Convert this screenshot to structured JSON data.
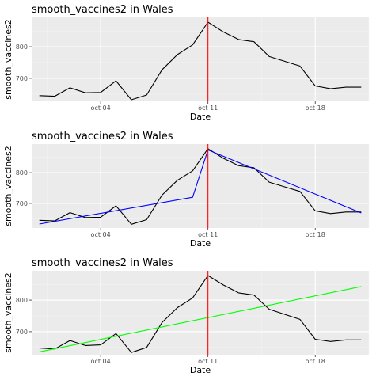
{
  "chart_data": [
    {
      "type": "line",
      "title": "smooth_vaccines2 in Wales",
      "xlabel": "Date",
      "ylabel": "smooth_vaccines2",
      "x": [
        "2021-09-30",
        "2021-10-01",
        "2021-10-02",
        "2021-10-03",
        "2021-10-04",
        "2021-10-05",
        "2021-10-06",
        "2021-10-07",
        "2021-10-08",
        "2021-10-09",
        "2021-10-10",
        "2021-10-11",
        "2021-10-12",
        "2021-10-13",
        "2021-10-14",
        "2021-10-15",
        "2021-10-16",
        "2021-10-17",
        "2021-10-18",
        "2021-10-19",
        "2021-10-20",
        "2021-10-21"
      ],
      "xlim": [
        "2021-09-29T12:00",
        "2021-10-21T12:00"
      ],
      "xticks": [
        {
          "date": "2021-10-04",
          "label": "oct 04"
        },
        {
          "date": "2021-10-11",
          "label": "oct 11"
        },
        {
          "date": "2021-10-18",
          "label": "oct 18"
        }
      ],
      "ylim": [
        627,
        893
      ],
      "yticks": [
        700,
        800
      ],
      "grid": true,
      "series": [
        {
          "color": "#000000",
          "values": [
            645,
            643,
            670,
            654,
            655,
            692,
            632,
            647,
            727,
            775,
            806,
            878,
            847,
            823,
            816,
            769,
            754,
            739,
            676,
            667,
            672,
            672
          ]
        }
      ],
      "vline": {
        "date": "2021-10-11",
        "color": "#ff0000"
      }
    },
    {
      "type": "line",
      "title": "smooth_vaccines2 in Wales",
      "xlabel": "Date",
      "ylabel": "smooth_vaccines2",
      "x": [
        "2021-09-30",
        "2021-10-01",
        "2021-10-02",
        "2021-10-03",
        "2021-10-04",
        "2021-10-05",
        "2021-10-06",
        "2021-10-07",
        "2021-10-08",
        "2021-10-09",
        "2021-10-10",
        "2021-10-11",
        "2021-10-12",
        "2021-10-13",
        "2021-10-14",
        "2021-10-15",
        "2021-10-16",
        "2021-10-17",
        "2021-10-18",
        "2021-10-19",
        "2021-10-20",
        "2021-10-21"
      ],
      "xlim": [
        "2021-09-29T12:00",
        "2021-10-21T12:00"
      ],
      "xticks": [
        {
          "date": "2021-10-04",
          "label": "oct 04"
        },
        {
          "date": "2021-10-11",
          "label": "oct 11"
        },
        {
          "date": "2021-10-18",
          "label": "oct 18"
        }
      ],
      "ylim": [
        620,
        893
      ],
      "yticks": [
        700,
        800
      ],
      "grid": true,
      "series": [
        {
          "color": "#000000",
          "values": [
            645,
            643,
            670,
            654,
            655,
            692,
            632,
            647,
            727,
            775,
            806,
            878,
            847,
            823,
            816,
            769,
            754,
            739,
            676,
            667,
            672,
            672
          ]
        },
        {
          "color": "#0000ff",
          "points": [
            {
              "x": "2021-09-30",
              "y": 633
            },
            {
              "x": "2021-10-10",
              "y": 720
            },
            {
              "x": "2021-10-11",
              "y": 874
            },
            {
              "x": "2021-10-21",
              "y": 669
            }
          ]
        }
      ],
      "vline": {
        "date": "2021-10-11",
        "color": "#ff0000"
      }
    },
    {
      "type": "line",
      "title": "smooth_vaccines2 in Wales",
      "xlabel": "Date",
      "ylabel": "smooth_vaccines2",
      "x": [
        "2021-09-30",
        "2021-10-01",
        "2021-10-02",
        "2021-10-03",
        "2021-10-04",
        "2021-10-05",
        "2021-10-06",
        "2021-10-07",
        "2021-10-08",
        "2021-10-09",
        "2021-10-10",
        "2021-10-11",
        "2021-10-12",
        "2021-10-13",
        "2021-10-14",
        "2021-10-15",
        "2021-10-16",
        "2021-10-17",
        "2021-10-18",
        "2021-10-19",
        "2021-10-20",
        "2021-10-21"
      ],
      "xlim": [
        "2021-09-29T12:00",
        "2021-10-21T12:00"
      ],
      "xticks": [
        {
          "date": "2021-10-04",
          "label": "oct 04"
        },
        {
          "date": "2021-10-11",
          "label": "oct 11"
        },
        {
          "date": "2021-10-18",
          "label": "oct 18"
        }
      ],
      "ylim": [
        627,
        893
      ],
      "yticks": [
        700,
        800
      ],
      "grid": true,
      "series": [
        {
          "color": "#000000",
          "values": [
            648,
            645,
            672,
            656,
            658,
            694,
            634,
            650,
            729,
            776,
            807,
            878,
            848,
            823,
            816,
            771,
            755,
            739,
            676,
            669,
            674,
            674
          ]
        },
        {
          "color": "#00ff00",
          "points": [
            {
              "x": "2021-09-30",
              "y": 636
            },
            {
              "x": "2021-10-21",
              "y": 843
            }
          ]
        }
      ],
      "vline": {
        "date": "2021-10-11",
        "color": "#ff0000"
      }
    }
  ]
}
